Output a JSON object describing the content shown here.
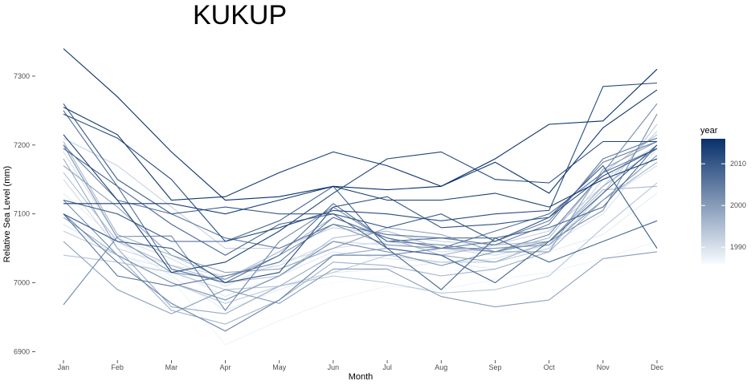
{
  "chart_data": {
    "type": "line",
    "title": "KUKUP",
    "xlabel": "Month",
    "ylabel": "Relative Sea Level (mm)",
    "categories": [
      "Jan",
      "Feb",
      "Mar",
      "Apr",
      "May",
      "Jun",
      "Jul",
      "Aug",
      "Sep",
      "Oct",
      "Nov",
      "Dec"
    ],
    "ylim": [
      6890,
      7350
    ],
    "yticks": [
      6900,
      7000,
      7100,
      7200,
      7300
    ],
    "grid": false,
    "legend": {
      "title": "year",
      "type": "continuous",
      "placement": "right",
      "range": [
        1986,
        2016
      ],
      "ticks": [
        1990,
        2000,
        2010
      ],
      "color_low": "#f7fbff",
      "color_high": "#08306b"
    },
    "series": [
      {
        "year": 1986,
        "values": [
          7042,
          7030,
          7010,
          6990,
          6985,
          7000,
          7010,
          7015,
          7025,
          7030,
          7050,
          7100
        ]
      },
      {
        "year": 1987,
        "values": [
          7100,
          7045,
          7005,
          6910,
          6945,
          6975,
          6995,
          6990,
          7005,
          7015,
          7035,
          7060
        ]
      },
      {
        "year": 1988,
        "values": [
          7130,
          7060,
          7010,
          6960,
          6990,
          7015,
          7020,
          7030,
          7020,
          7045,
          7070,
          7130
        ]
      },
      {
        "year": 1989,
        "values": [
          7085,
          7040,
          7020,
          6980,
          7010,
          7045,
          7035,
          7030,
          7035,
          7055,
          7100,
          7195
        ]
      },
      {
        "year": 1990,
        "values": [
          7190,
          7065,
          7035,
          6995,
          7030,
          7050,
          7060,
          7045,
          7050,
          7060,
          7120,
          7170
        ]
      },
      {
        "year": 1991,
        "values": [
          7150,
          7050,
          7025,
          7010,
          7025,
          7060,
          7055,
          7050,
          7040,
          7055,
          7150,
          7200
        ]
      },
      {
        "year": 1992,
        "values": [
          7210,
          7170,
          7110,
          7050,
          7050,
          7080,
          7070,
          7060,
          7055,
          7075,
          7140,
          7220
        ]
      },
      {
        "year": 1993,
        "values": [
          7075,
          7040,
          7000,
          6970,
          6995,
          7015,
          7040,
          7030,
          7030,
          7050,
          7130,
          7230
        ]
      },
      {
        "year": 1994,
        "values": [
          7040,
          7030,
          7015,
          6990,
          6995,
          7010,
          7000,
          6985,
          6990,
          7010,
          7080,
          7145
        ]
      },
      {
        "year": 1995,
        "values": [
          7160,
          7060,
          7025,
          7000,
          7010,
          7065,
          7075,
          7050,
          7045,
          7065,
          7160,
          7215
        ]
      },
      {
        "year": 1996,
        "values": [
          7205,
          7070,
          7040,
          7005,
          7045,
          7095,
          7065,
          7040,
          7055,
          7060,
          7135,
          7140
        ]
      },
      {
        "year": 1997,
        "values": [
          7095,
          7040,
          6960,
          6940,
          6975,
          7030,
          7025,
          7010,
          7020,
          7045,
          7120,
          7175
        ]
      },
      {
        "year": 1998,
        "values": [
          7180,
          7050,
          6965,
          6955,
          6995,
          7040,
          7050,
          7040,
          7030,
          7060,
          7140,
          7195
        ]
      },
      {
        "year": 1999,
        "values": [
          7170,
          7110,
          7040,
          7015,
          7020,
          7050,
          7080,
          7070,
          7045,
          7045,
          7165,
          7205
        ]
      },
      {
        "year": 2000,
        "values": [
          7060,
          6990,
          6955,
          6990,
          6970,
          7020,
          7020,
          6980,
          6965,
          6975,
          7035,
          7045
        ]
      },
      {
        "year": 2001,
        "values": [
          7200,
          7065,
          7015,
          7005,
          7040,
          7085,
          7055,
          7050,
          7050,
          7055,
          7120,
          7185
        ]
      },
      {
        "year": 2002,
        "values": [
          7120,
          7040,
          7000,
          6975,
          7010,
          7060,
          7045,
          7025,
          7045,
          7060,
          7105,
          7245
        ]
      },
      {
        "year": 2003,
        "values": [
          6968,
          7067,
          7068,
          6960,
          7060,
          7110,
          7060,
          7055,
          7045,
          7070,
          7160,
          7260
        ]
      },
      {
        "year": 2004,
        "values": [
          7100,
          7030,
          6970,
          6930,
          6975,
          7040,
          7040,
          7050,
          7060,
          7090,
          7175,
          7205
        ]
      },
      {
        "year": 2005,
        "values": [
          7200,
          7120,
          7100,
          7065,
          7050,
          7085,
          7070,
          7065,
          7055,
          7085,
          7180,
          7210
        ]
      },
      {
        "year": 2006,
        "values": [
          7100,
          7010,
          6995,
          7010,
          7030,
          7095,
          7065,
          7050,
          7075,
          7100,
          7160,
          7195
        ]
      },
      {
        "year": 2007,
        "values": [
          7250,
          7140,
          7020,
          7000,
          7040,
          7115,
          7060,
          7065,
          7065,
          7080,
          7110,
          7200
        ]
      },
      {
        "year": 2008,
        "values": [
          7195,
          7140,
          7085,
          7040,
          7085,
          7100,
          7050,
          6990,
          7065,
          7030,
          7060,
          7090
        ]
      },
      {
        "year": 2009,
        "values": [
          7120,
          7100,
          7060,
          7060,
          7090,
          7140,
          7050,
          7040,
          7000,
          7060,
          7130,
          7200
        ]
      },
      {
        "year": 2010,
        "values": [
          7260,
          7150,
          7100,
          7110,
          7100,
          7100,
          7080,
          7100,
          7060,
          7095,
          7170,
          7050
        ]
      },
      {
        "year": 2011,
        "values": [
          7100,
          7060,
          7050,
          7000,
          7015,
          7110,
          7125,
          7080,
          7085,
          7095,
          7155,
          7195
        ]
      },
      {
        "year": 2012,
        "values": [
          7245,
          7210,
          7150,
          7060,
          7080,
          7105,
          7100,
          7090,
          7100,
          7105,
          7285,
          7290
        ]
      },
      {
        "year": 2013,
        "values": [
          7215,
          7120,
          7015,
          7030,
          7075,
          7130,
          7180,
          7190,
          7150,
          7145,
          7205,
          7205
        ]
      },
      {
        "year": 2014,
        "values": [
          7115,
          7115,
          7115,
          7100,
          7120,
          7140,
          7120,
          7120,
          7130,
          7110,
          7150,
          7180
        ]
      },
      {
        "year": 2015,
        "values": [
          7255,
          7215,
          7120,
          7125,
          7160,
          7190,
          7170,
          7140,
          7175,
          7130,
          7225,
          7280
        ]
      },
      {
        "year": 2016,
        "values": [
          7340,
          7270,
          7190,
          7120,
          7125,
          7140,
          7135,
          7140,
          7180,
          7230,
          7235,
          7310
        ]
      }
    ]
  }
}
